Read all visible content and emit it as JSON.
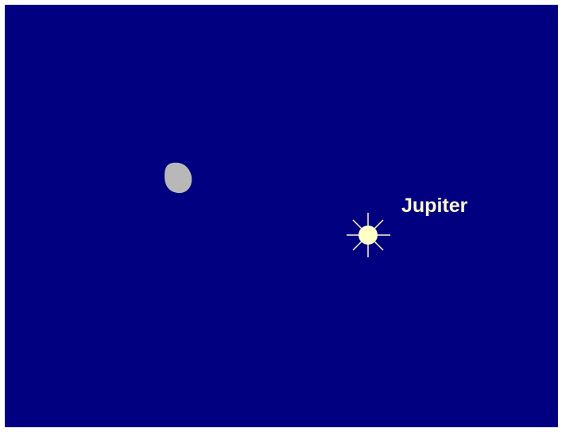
{
  "labels": {
    "jupiter": "Jupiter"
  }
}
